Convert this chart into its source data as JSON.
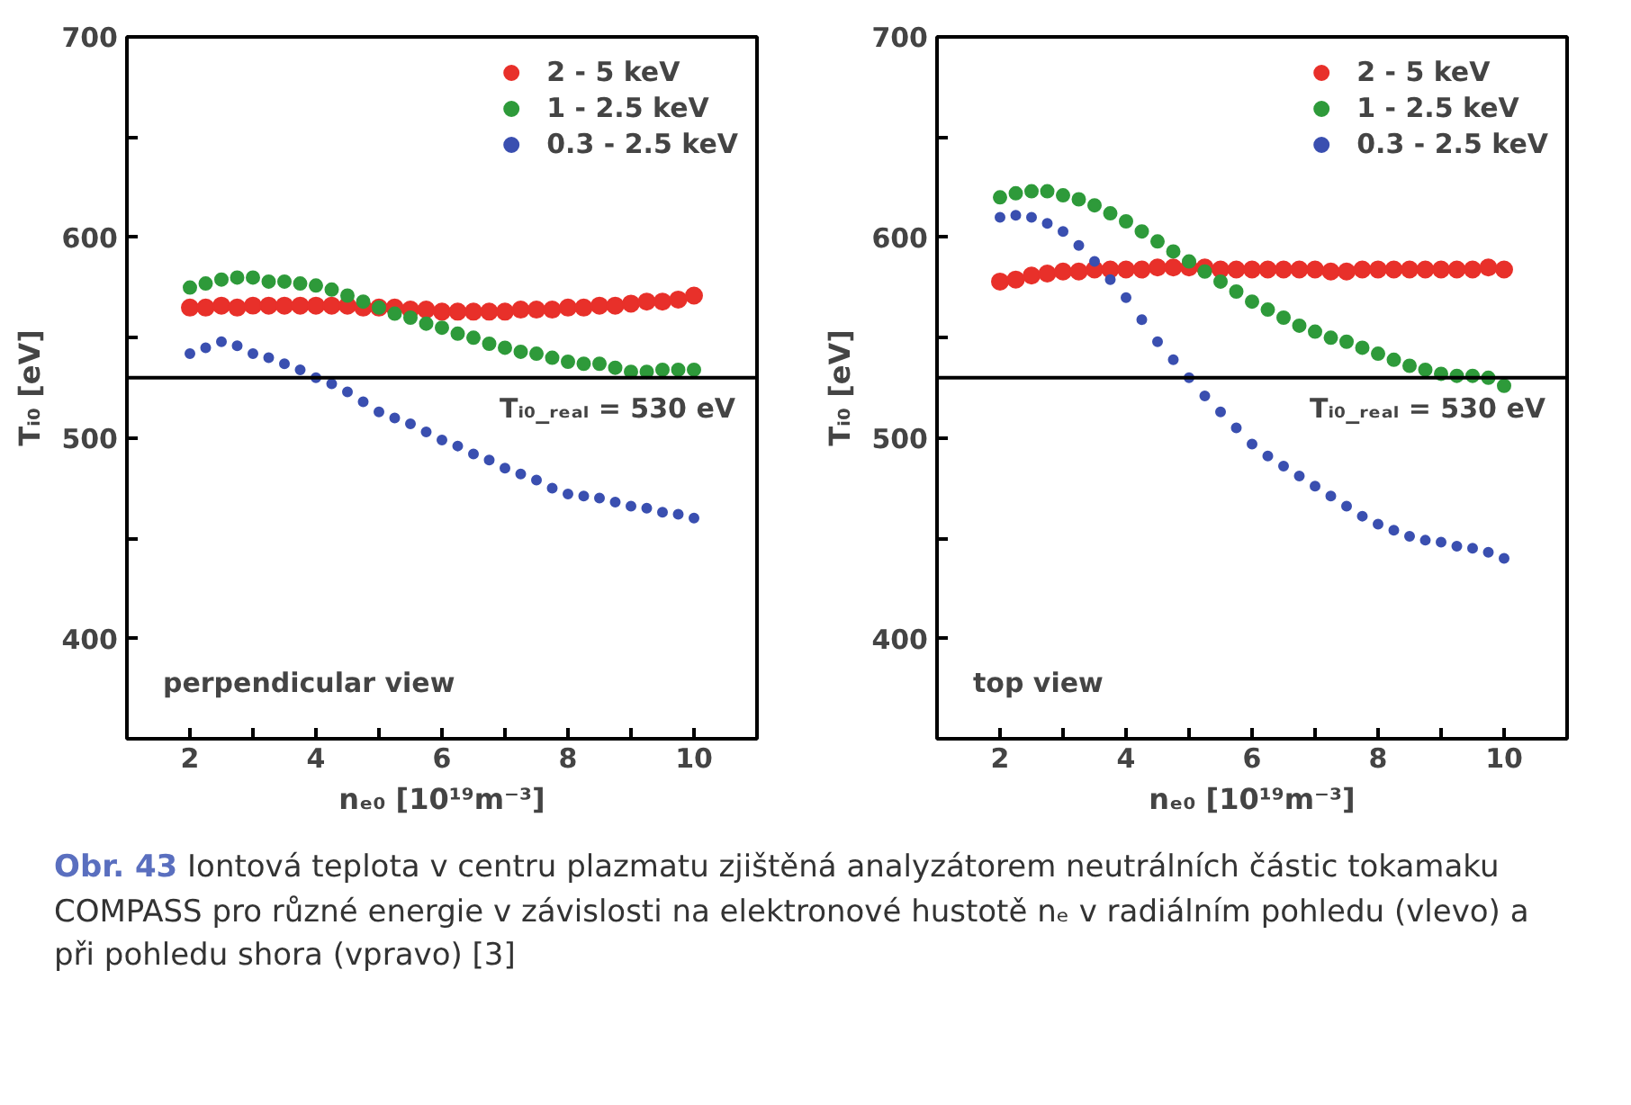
{
  "chart_data": [
    {
      "type": "scatter",
      "xlabel": "nₑ₀ [10¹⁹m⁻³]",
      "ylabel": "Tᵢ₀ [eV]",
      "marker": "circle",
      "legend": "top right",
      "grid": false,
      "xlim": [
        1,
        11
      ],
      "ylim": [
        350,
        700
      ],
      "xticks": [
        2,
        {
          "value": 3,
          "label": null
        },
        4,
        {
          "value": 5,
          "label": null
        },
        6,
        {
          "value": 7,
          "label": null
        },
        8,
        {
          "value": 9,
          "label": null
        },
        10
      ],
      "yticks": [
        400,
        {
          "value": 450,
          "label": null
        },
        500,
        {
          "value": 550,
          "label": null
        },
        600,
        {
          "value": 650,
          "label": null
        },
        700
      ],
      "x": [
        2,
        2.25,
        2.5,
        2.75,
        3,
        3.25,
        3.5,
        3.75,
        4,
        4.25,
        4.5,
        4.75,
        5,
        5.25,
        5.5,
        5.75,
        6,
        6.25,
        6.5,
        6.75,
        7,
        7.25,
        7.5,
        7.75,
        8,
        8.25,
        8.5,
        8.75,
        9,
        9.25,
        9.5,
        9.75,
        10
      ],
      "series": [
        {
          "name": "2 - 5 keV",
          "color": "#e8302a",
          "values": [
            565,
            565,
            566,
            565,
            566,
            566,
            566,
            566,
            566,
            566,
            566,
            565,
            565,
            565,
            564,
            564,
            563,
            563,
            563,
            563,
            563,
            564,
            564,
            564,
            565,
            565,
            566,
            566,
            567,
            568,
            568,
            569,
            571
          ]
        },
        {
          "name": "1 - 2.5 keV",
          "color": "#2e9a3a",
          "values": [
            575,
            577,
            579,
            580,
            580,
            578,
            578,
            577,
            576,
            574,
            571,
            568,
            565,
            562,
            560,
            557,
            555,
            552,
            550,
            547,
            545,
            543,
            542,
            540,
            538,
            537,
            537,
            535,
            533,
            533,
            534,
            534,
            534
          ]
        },
        {
          "name": "0.3 - 2.5 keV",
          "color": "#3a4fb0",
          "values": [
            542,
            545,
            548,
            546,
            542,
            540,
            537,
            534,
            530,
            527,
            523,
            518,
            513,
            510,
            507,
            503,
            499,
            496,
            492,
            489,
            485,
            482,
            479,
            475,
            472,
            471,
            470,
            468,
            466,
            465,
            463,
            462,
            460
          ]
        }
      ],
      "ref_lines": [
        {
          "axis": "y",
          "value": 530,
          "label": "Tᵢ₀_ᵣₑₐₗ = 530 eV",
          "color": "#000000"
        }
      ],
      "annotations": [
        "perpendicular view"
      ]
    },
    {
      "type": "scatter",
      "xlabel": "nₑ₀ [10¹⁹m⁻³]",
      "ylabel": "Tᵢ₀ [eV]",
      "marker": "circle",
      "legend": "top right",
      "grid": false,
      "xlim": [
        1,
        11
      ],
      "ylim": [
        350,
        700
      ],
      "xticks": [
        2,
        {
          "value": 3,
          "label": null
        },
        4,
        {
          "value": 5,
          "label": null
        },
        6,
        {
          "value": 7,
          "label": null
        },
        8,
        {
          "value": 9,
          "label": null
        },
        10
      ],
      "yticks": [
        400,
        {
          "value": 450,
          "label": null
        },
        500,
        {
          "value": 550,
          "label": null
        },
        600,
        {
          "value": 650,
          "label": null
        },
        700
      ],
      "x": [
        2,
        2.25,
        2.5,
        2.75,
        3,
        3.25,
        3.5,
        3.75,
        4,
        4.25,
        4.5,
        4.75,
        5,
        5.25,
        5.5,
        5.75,
        6,
        6.25,
        6.5,
        6.75,
        7,
        7.25,
        7.5,
        7.75,
        8,
        8.25,
        8.5,
        8.75,
        9,
        9.25,
        9.5,
        9.75,
        10
      ],
      "series": [
        {
          "name": "2 - 5 keV",
          "color": "#e8302a",
          "values": [
            578,
            579,
            581,
            582,
            583,
            583,
            584,
            584,
            584,
            584,
            585,
            585,
            585,
            585,
            584,
            584,
            584,
            584,
            584,
            584,
            584,
            583,
            583,
            584,
            584,
            584,
            584,
            584,
            584,
            584,
            584,
            585,
            584
          ]
        },
        {
          "name": "1 - 2.5 keV",
          "color": "#2e9a3a",
          "values": [
            620,
            622,
            623,
            623,
            621,
            619,
            616,
            612,
            608,
            603,
            598,
            593,
            588,
            583,
            578,
            573,
            568,
            564,
            560,
            556,
            553,
            550,
            548,
            545,
            542,
            539,
            536,
            534,
            532,
            531,
            531,
            530,
            526
          ]
        },
        {
          "name": "0.3 - 2.5 keV",
          "color": "#3a4fb0",
          "values": [
            610,
            611,
            610,
            607,
            603,
            596,
            588,
            579,
            570,
            559,
            548,
            539,
            530,
            521,
            513,
            505,
            497,
            491,
            486,
            481,
            476,
            471,
            466,
            461,
            457,
            454,
            451,
            449,
            448,
            446,
            445,
            443,
            440
          ]
        }
      ],
      "ref_lines": [
        {
          "axis": "y",
          "value": 530,
          "label": "Tᵢ₀_ᵣₑₐₗ = 530 eV",
          "color": "#000000"
        }
      ],
      "annotations": [
        "top view"
      ]
    },
    {
      "type": "other",
      "annotations": [
        "Obr. 43",
        "Iontová teplota v centru plazmatu zjištěná analyzátorem neutrálních částic tokamaku COMPASS pro různé energie v závislosti na elektronové hustotě nₑ v radiálním pohledu (vlevo) a při pohledu shora (vpravo) [3]"
      ]
    }
  ]
}
